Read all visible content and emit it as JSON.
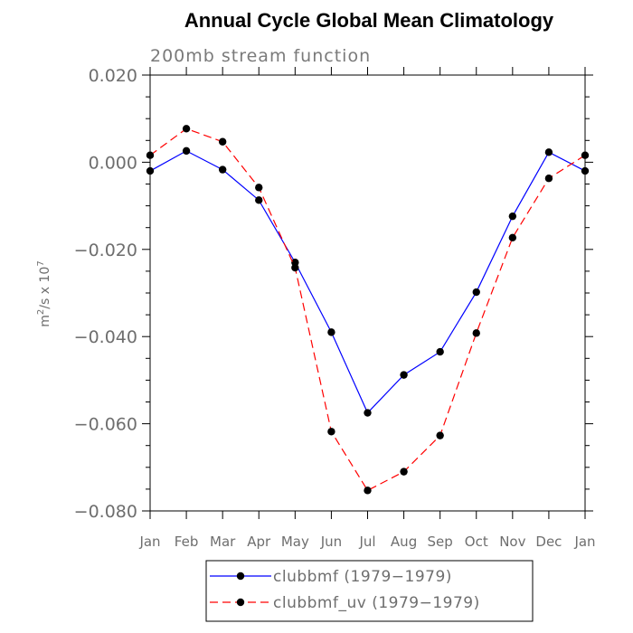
{
  "chart_data": {
    "type": "line",
    "title": "Annual Cycle Global Mean Climatology",
    "subtitle": "200mb stream function",
    "ylabel_base": "m",
    "ylabel_exp": "2",
    "ylabel_mid": "/s x 10",
    "ylabel_exp2": "7",
    "categories": [
      "Jan",
      "Feb",
      "Mar",
      "Apr",
      "May",
      "Jun",
      "Jul",
      "Aug",
      "Sep",
      "Oct",
      "Nov",
      "Dec",
      "Jan"
    ],
    "ylim": [
      -0.08,
      0.02
    ],
    "yticks": [
      0.02,
      0.0,
      -0.02,
      -0.04,
      -0.06,
      -0.08
    ],
    "ytick_labels": [
      "0.020",
      "0.000",
      "−0.020",
      "−0.040",
      "−0.060",
      "−0.080"
    ],
    "minor_step": 0.005,
    "legend_position": "bottom",
    "series": [
      {
        "name": "clubbmf (1979−1979)",
        "color": "#0000ff",
        "dash": "solid",
        "values": [
          -0.002,
          0.0026,
          -0.0017,
          -0.0087,
          -0.023,
          -0.039,
          -0.0575,
          -0.0488,
          -0.0435,
          -0.0298,
          -0.0124,
          0.0023,
          -0.002
        ]
      },
      {
        "name": "clubbmf_uv (1979−1979)",
        "color": "#ff0000",
        "dash": "dashed",
        "values": [
          0.0016,
          0.0077,
          0.0047,
          -0.0058,
          -0.0242,
          -0.0618,
          -0.0753,
          -0.071,
          -0.0627,
          -0.0392,
          -0.0173,
          -0.0037,
          0.0016
        ]
      }
    ]
  }
}
